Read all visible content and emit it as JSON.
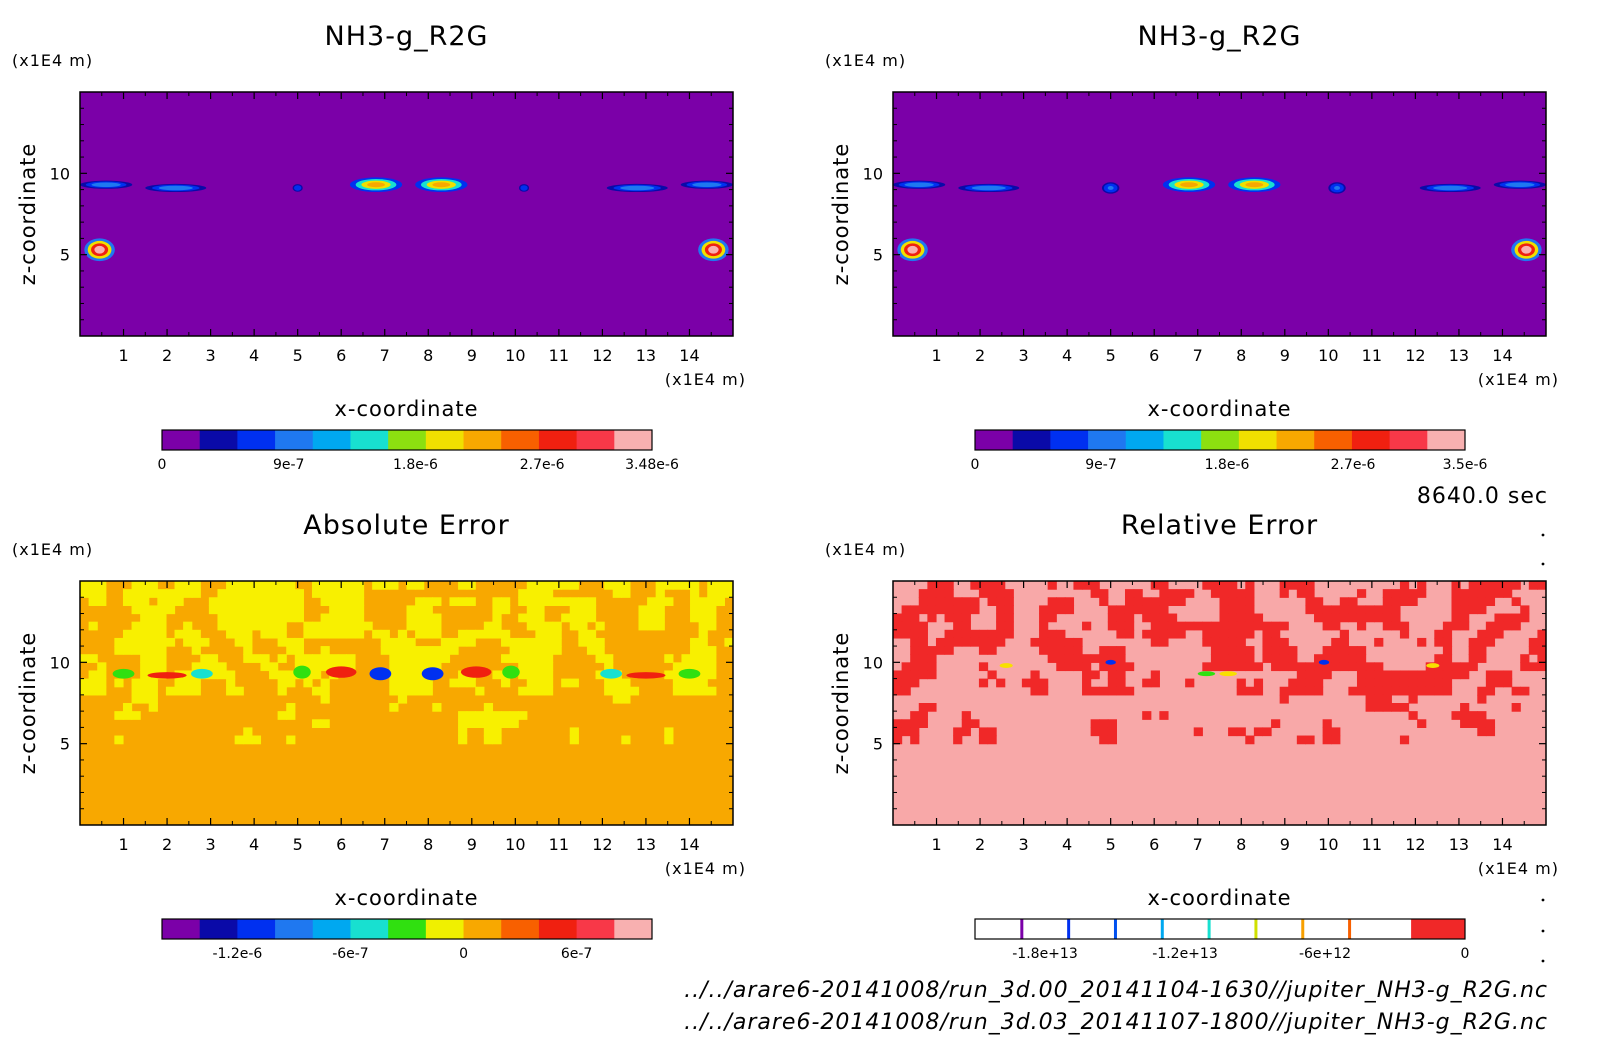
{
  "figure": {
    "time_label": "8640.0 sec",
    "file_paths": [
      "../../arare6-20141008/run_3d.00_20141104-1630//jupiter_NH3-g_R2G.nc",
      "../../arare6-20141008/run_3d.03_20141107-1800//jupiter_NH3-g_R2G.nc"
    ]
  },
  "chart_data": [
    {
      "type": "heatmap",
      "title": "NH3-g_R2G",
      "xlabel": "x-coordinate",
      "ylabel": "z-coordinate",
      "x_unit": "(x1E4 m)",
      "z_unit": "(x1E4 m)",
      "xlim": [
        0,
        15
      ],
      "zlim": [
        0,
        15
      ],
      "x_ticks": [
        1,
        2,
        3,
        4,
        5,
        6,
        7,
        8,
        9,
        10,
        11,
        12,
        13,
        14
      ],
      "z_ticks": [
        5,
        10
      ],
      "background": "#7b00a8",
      "colorbar": {
        "colors": [
          "#7b00a8",
          "#0a0aa8",
          "#0030f0",
          "#1f78f0",
          "#00a8f0",
          "#18e0d0",
          "#8ce010",
          "#f0e000",
          "#f8a800",
          "#f86000",
          "#f02010",
          "#f83848",
          "#f8b0b0"
        ],
        "ticks": [
          "0",
          "9e-7",
          "1.8e-6",
          "2.7e-6",
          "3.48e-6"
        ],
        "tick_values": [
          0,
          9e-07,
          1.8e-06,
          2.7e-06,
          3.48e-06
        ],
        "vmin": 0,
        "vmax": 3.48e-06
      },
      "features": [
        {
          "x": 0.45,
          "z": 5.3,
          "rx": 0.35,
          "rz": 0.7,
          "peak": 3.4e-06
        },
        {
          "x": 14.55,
          "z": 5.3,
          "rx": 0.35,
          "rz": 0.7,
          "peak": 3.4e-06
        },
        {
          "x": 0.6,
          "z": 9.3,
          "rx": 0.6,
          "rz": 0.25,
          "peak": 1e-06
        },
        {
          "x": 2.2,
          "z": 9.1,
          "rx": 0.7,
          "rz": 0.25,
          "peak": 1e-06
        },
        {
          "x": 5.0,
          "z": 9.1,
          "rx": 0.15,
          "rz": 0.3,
          "peak": 7e-07
        },
        {
          "x": 6.8,
          "z": 9.3,
          "rx": 0.6,
          "rz": 0.45,
          "peak": 2.3e-06
        },
        {
          "x": 8.3,
          "z": 9.3,
          "rx": 0.6,
          "rz": 0.45,
          "peak": 2.3e-06
        },
        {
          "x": 10.2,
          "z": 9.1,
          "rx": 0.15,
          "rz": 0.3,
          "peak": 7e-07
        },
        {
          "x": 12.8,
          "z": 9.1,
          "rx": 0.7,
          "rz": 0.25,
          "peak": 1e-06
        },
        {
          "x": 14.4,
          "z": 9.3,
          "rx": 0.6,
          "rz": 0.25,
          "peak": 1e-06
        }
      ]
    },
    {
      "type": "heatmap",
      "title": "NH3-g_R2G",
      "xlabel": "x-coordinate",
      "ylabel": "z-coordinate",
      "x_unit": "(x1E4 m)",
      "z_unit": "(x1E4 m)",
      "xlim": [
        0,
        15
      ],
      "zlim": [
        0,
        15
      ],
      "x_ticks": [
        1,
        2,
        3,
        4,
        5,
        6,
        7,
        8,
        9,
        10,
        11,
        12,
        13,
        14
      ],
      "z_ticks": [
        5,
        10
      ],
      "background": "#7b00a8",
      "colorbar": {
        "colors": [
          "#7b00a8",
          "#0a0aa8",
          "#0030f0",
          "#1f78f0",
          "#00a8f0",
          "#18e0d0",
          "#8ce010",
          "#f0e000",
          "#f8a800",
          "#f86000",
          "#f02010",
          "#f83848",
          "#f8b0b0"
        ],
        "ticks": [
          "0",
          "9e-7",
          "1.8e-6",
          "2.7e-6",
          "3.5e-6"
        ],
        "tick_values": [
          0,
          9e-07,
          1.8e-06,
          2.7e-06,
          3.5e-06
        ],
        "vmin": 0,
        "vmax": 3.5e-06
      },
      "features": [
        {
          "x": 0.45,
          "z": 5.3,
          "rx": 0.35,
          "rz": 0.7,
          "peak": 3.4e-06
        },
        {
          "x": 14.55,
          "z": 5.3,
          "rx": 0.35,
          "rz": 0.7,
          "peak": 3.4e-06
        },
        {
          "x": 0.6,
          "z": 9.3,
          "rx": 0.6,
          "rz": 0.25,
          "peak": 1e-06
        },
        {
          "x": 2.2,
          "z": 9.1,
          "rx": 0.7,
          "rz": 0.25,
          "peak": 1e-06
        },
        {
          "x": 5.0,
          "z": 9.1,
          "rx": 0.2,
          "rz": 0.35,
          "peak": 9e-07
        },
        {
          "x": 6.8,
          "z": 9.3,
          "rx": 0.6,
          "rz": 0.45,
          "peak": 2.3e-06
        },
        {
          "x": 8.3,
          "z": 9.3,
          "rx": 0.6,
          "rz": 0.45,
          "peak": 2.3e-06
        },
        {
          "x": 10.2,
          "z": 9.1,
          "rx": 0.2,
          "rz": 0.35,
          "peak": 9e-07
        },
        {
          "x": 12.8,
          "z": 9.1,
          "rx": 0.7,
          "rz": 0.25,
          "peak": 1e-06
        },
        {
          "x": 14.4,
          "z": 9.3,
          "rx": 0.6,
          "rz": 0.25,
          "peak": 1e-06
        }
      ]
    },
    {
      "type": "heatmap",
      "title": "Absolute Error",
      "xlabel": "x-coordinate",
      "ylabel": "z-coordinate",
      "x_unit": "(x1E4 m)",
      "z_unit": "(x1E4 m)",
      "xlim": [
        0,
        15
      ],
      "zlim": [
        0,
        15
      ],
      "x_ticks": [
        1,
        2,
        3,
        4,
        5,
        6,
        7,
        8,
        9,
        10,
        11,
        12,
        13,
        14
      ],
      "z_ticks": [
        5,
        10
      ],
      "background": "#f8a800",
      "secondary_color": "#f8f000",
      "colorbar": {
        "colors": [
          "#7b00a8",
          "#0a0aa8",
          "#0030f0",
          "#1f78f0",
          "#00a8f0",
          "#18e0d0",
          "#30e010",
          "#f0f000",
          "#f8a800",
          "#f86000",
          "#f02010",
          "#f83848",
          "#f8b0b0"
        ],
        "ticks": [
          "-1.2e-6",
          "-6e-7",
          "0",
          "6e-7"
        ],
        "tick_values": [
          -1.2e-06,
          -6e-07,
          0,
          6e-07
        ],
        "vmin": -1.6e-06,
        "vmax": 1e-06
      },
      "features": [
        {
          "x": 1.0,
          "z": 9.3,
          "rx": 0.25,
          "rz": 0.3,
          "color": "#30e010"
        },
        {
          "x": 2.0,
          "z": 9.2,
          "rx": 0.45,
          "rz": 0.2,
          "color": "#f02010"
        },
        {
          "x": 2.8,
          "z": 9.3,
          "rx": 0.25,
          "rz": 0.3,
          "color": "#18e0d0"
        },
        {
          "x": 5.1,
          "z": 9.4,
          "rx": 0.2,
          "rz": 0.4,
          "color": "#30e010"
        },
        {
          "x": 6.0,
          "z": 9.4,
          "rx": 0.35,
          "rz": 0.35,
          "color": "#f02010"
        },
        {
          "x": 6.9,
          "z": 9.3,
          "rx": 0.25,
          "rz": 0.4,
          "color": "#0030f0"
        },
        {
          "x": 8.1,
          "z": 9.3,
          "rx": 0.25,
          "rz": 0.4,
          "color": "#0030f0"
        },
        {
          "x": 9.1,
          "z": 9.4,
          "rx": 0.35,
          "rz": 0.35,
          "color": "#f02010"
        },
        {
          "x": 9.9,
          "z": 9.4,
          "rx": 0.2,
          "rz": 0.4,
          "color": "#30e010"
        },
        {
          "x": 12.2,
          "z": 9.3,
          "rx": 0.25,
          "rz": 0.3,
          "color": "#18e0d0"
        },
        {
          "x": 13.0,
          "z": 9.2,
          "rx": 0.45,
          "rz": 0.2,
          "color": "#f02010"
        },
        {
          "x": 14.0,
          "z": 9.3,
          "rx": 0.25,
          "rz": 0.3,
          "color": "#30e010"
        }
      ]
    },
    {
      "type": "heatmap",
      "title": "Relative Error",
      "xlabel": "x-coordinate",
      "ylabel": "z-coordinate",
      "x_unit": "(x1E4 m)",
      "z_unit": "(x1E4 m)",
      "xlim": [
        0,
        15
      ],
      "zlim": [
        0,
        15
      ],
      "x_ticks": [
        1,
        2,
        3,
        4,
        5,
        6,
        7,
        8,
        9,
        10,
        11,
        12,
        13,
        14
      ],
      "z_ticks": [
        5,
        10
      ],
      "background": "#f8a8a8",
      "secondary_color": "#f02828",
      "colorbar": {
        "style": "lines",
        "line_colors": [
          "#7b00a8",
          "#0030f0",
          "#0050f0",
          "#00a8f0",
          "#18e0d0",
          "#d0e000",
          "#f8a000",
          "#f86000"
        ],
        "end_color": "#f02828",
        "ticks": [
          "-1.8e+13",
          "-1.2e+13",
          "-6e+12",
          "0"
        ],
        "tick_values": [
          -18000000000000.0,
          -12000000000000.0,
          -6000000000000.0,
          0
        ],
        "vmin": -21000000000000.0,
        "vmax": 0
      },
      "features": [
        {
          "x": 2.6,
          "z": 9.8,
          "rx": 0.15,
          "rz": 0.15,
          "color": "#f8e000"
        },
        {
          "x": 5.0,
          "z": 10.0,
          "rx": 0.12,
          "rz": 0.15,
          "color": "#0030f0"
        },
        {
          "x": 7.2,
          "z": 9.3,
          "rx": 0.2,
          "rz": 0.15,
          "color": "#30e010"
        },
        {
          "x": 7.7,
          "z": 9.3,
          "rx": 0.2,
          "rz": 0.15,
          "color": "#f8e000"
        },
        {
          "x": 9.9,
          "z": 10.0,
          "rx": 0.12,
          "rz": 0.15,
          "color": "#0030f0"
        },
        {
          "x": 12.4,
          "z": 9.8,
          "rx": 0.15,
          "rz": 0.15,
          "color": "#f8e000"
        }
      ]
    }
  ]
}
